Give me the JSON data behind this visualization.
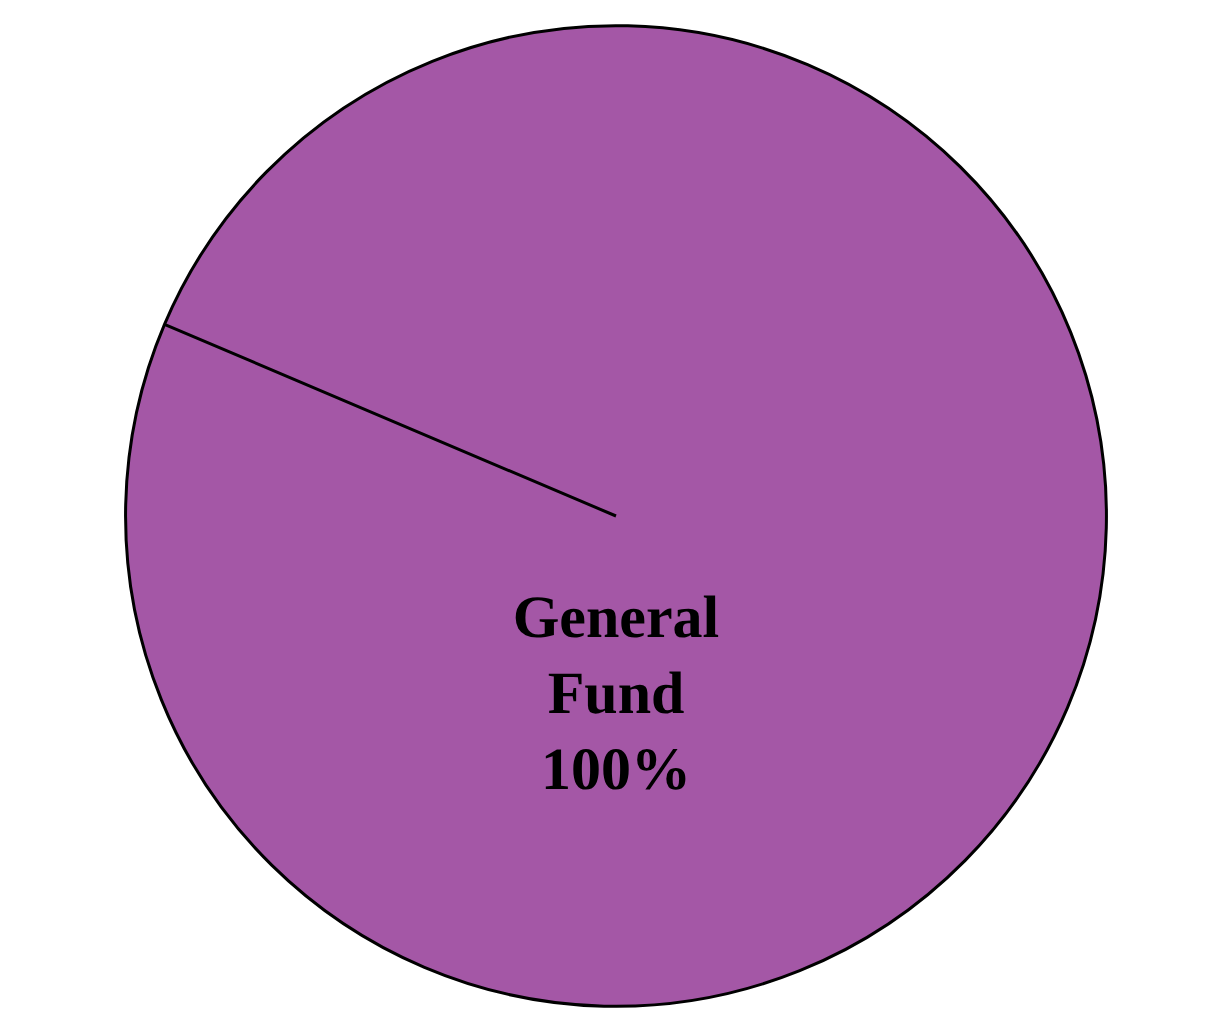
{
  "chart_data": {
    "type": "pie",
    "categories": [
      "General Fund"
    ],
    "values": [
      100
    ],
    "colors": [
      "#a457a6"
    ],
    "value_labels": [
      "100%"
    ],
    "legend": false
  }
}
